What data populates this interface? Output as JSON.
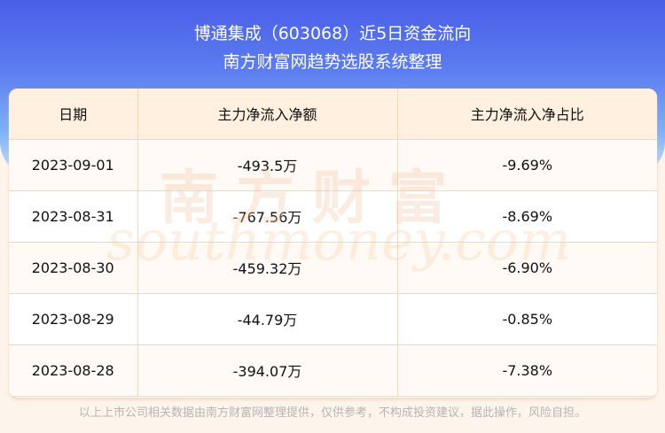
{
  "header": {
    "title": "博通集成（603068）近5日资金流向",
    "subtitle": "南方财富网趋势选股系统整理"
  },
  "table": {
    "columns": [
      "日期",
      "主力净流入净额",
      "主力净流入净占比"
    ],
    "rows": [
      [
        "2023-09-01",
        "-493.5万",
        "-9.69%"
      ],
      [
        "2023-08-31",
        "-767.56万",
        "-8.69%"
      ],
      [
        "2023-08-30",
        "-459.32万",
        "-6.90%"
      ],
      [
        "2023-08-29",
        "-44.79万",
        "-0.85%"
      ],
      [
        "2023-08-28",
        "-394.07万",
        "-7.38%"
      ]
    ]
  },
  "watermark": {
    "cn": "南方财富",
    "en": "southmoney.com"
  },
  "footer": "以上上市公司相关数据由南方财富网整理提供，仅供参考，不构成投资建议，据此操作，风险自担。"
}
